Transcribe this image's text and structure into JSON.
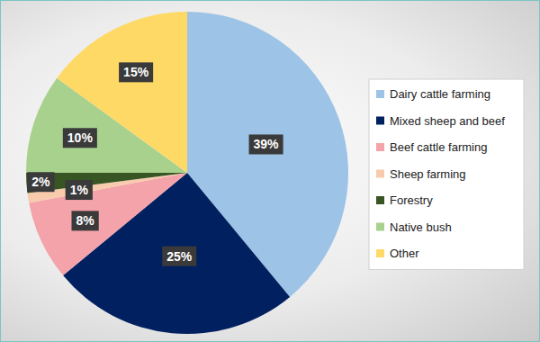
{
  "chart_data": {
    "type": "pie",
    "categories": [
      "Dairy cattle farming",
      "Mixed sheep and beef",
      "Beef cattle farming",
      "Sheep farming",
      "Forestry",
      "Native bush",
      "Other"
    ],
    "values": [
      39,
      25,
      8,
      1,
      2,
      10,
      15
    ],
    "value_labels": [
      "39%",
      "25%",
      "8%",
      "1%",
      "2%",
      "10%",
      "15%"
    ],
    "colors": [
      "#9dc3e6",
      "#002060",
      "#f4a3aa",
      "#f8cbad",
      "#375623",
      "#a9d18e",
      "#ffd966"
    ],
    "data_labels": true,
    "legend": "right"
  }
}
